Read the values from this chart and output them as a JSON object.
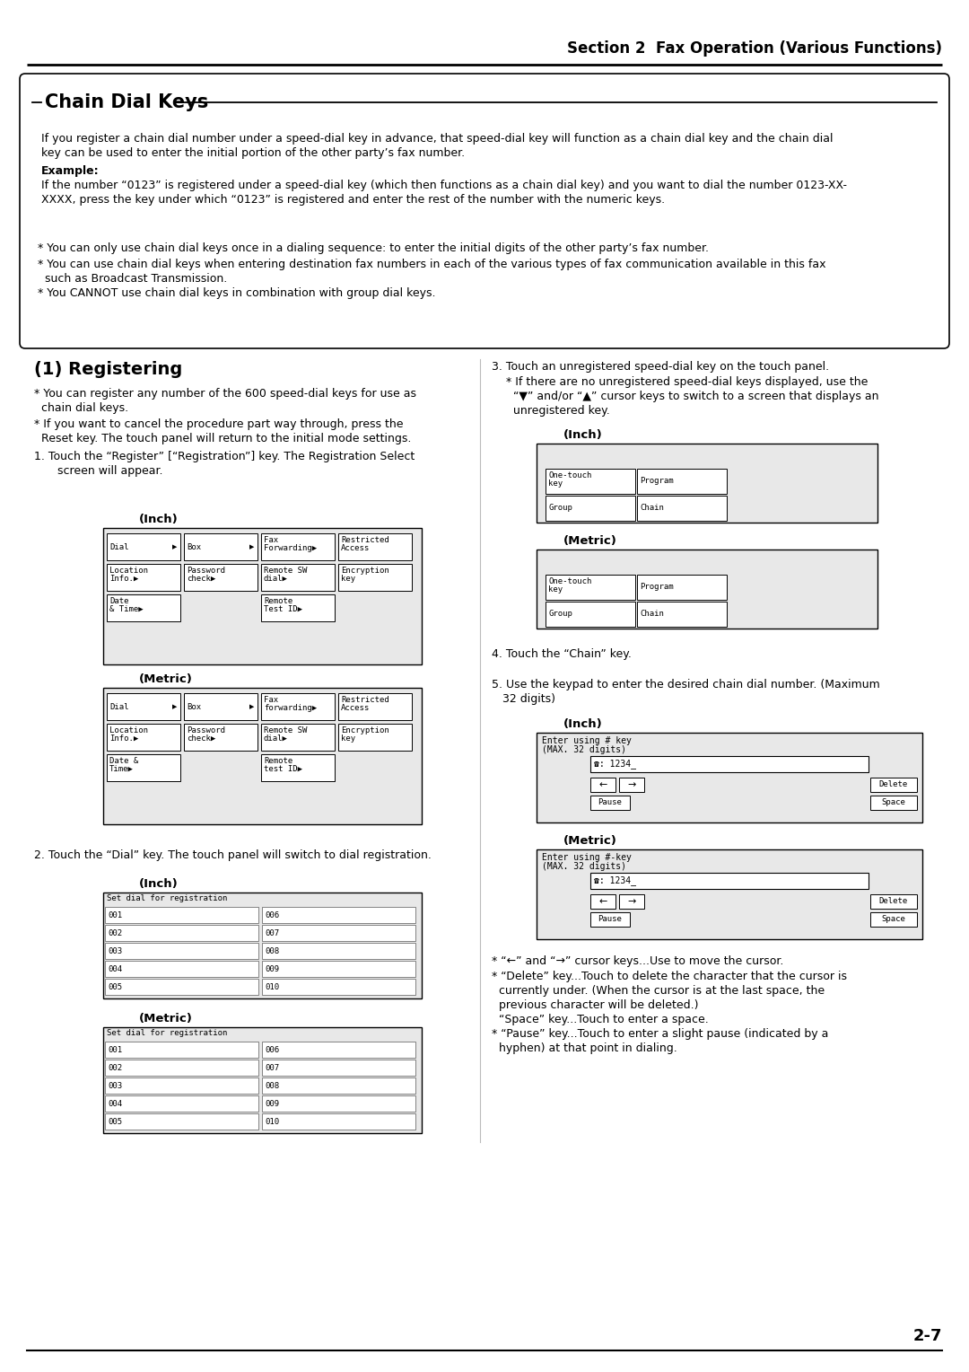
{
  "bg_color": "#ffffff",
  "title_section": "Section 2  Fax Operation (Various Functions)",
  "chapter_title": "Chain Dial Keys",
  "page_number": "2-7",
  "intro_lines": [
    "If you register a chain dial number under a speed-dial key in advance, that speed-dial key will function as a chain dial key and the chain dial",
    "key can be used to enter the initial portion of the other party’s fax number.",
    "Example:",
    "If the number “0123” is registered under a speed-dial key (which then functions as a chain dial key) and you want to dial the number 0123-XX-",
    "XXXX, press the key under which “0123” is registered and enter the rest of the number with the numeric keys."
  ],
  "bullet1": "* You can only use chain dial keys once in a dialing sequence: to enter the initial digits of the other party’s fax number.",
  "bullet2a": "* You can use chain dial keys when entering destination fax numbers in each of the various types of fax communication available in this fax",
  "bullet2b": "  such as Broadcast Transmission.",
  "bullet3": "* You CANNOT use chain dial keys in combination with group dial keys.",
  "reg_title": "(1) Registering",
  "reg_b1a": "* You can register any number of the 600 speed-dial keys for use as",
  "reg_b1b": "  chain dial keys.",
  "reg_b2a": "* If you want to cancel the procedure part way through, press the",
  "reg_b2b": "  Reset key. The touch panel will return to the initial mode settings.",
  "step1a": "1. Touch the “Register” [“Registration”] key. The Registration Select",
  "step1b": "   screen will appear.",
  "step2": "2. Touch the “Dial” key. The touch panel will switch to dial registration.",
  "step3a": "3. Touch an unregistered speed-dial key on the touch panel.",
  "step3b": "  * If there are no unregistered speed-dial keys displayed, use the",
  "step3c": "    “▼” and/or “▲” cursor keys to switch to a screen that displays an",
  "step3d": "    unregistered key.",
  "step4": "4. Touch the “Chain” key.",
  "step5a": "5. Use the keypad to enter the desired chain dial number. (Maximum",
  "step5b": "   32 digits)",
  "sub_b1": "* “←” and “→” cursor keys...Use to move the cursor.",
  "sub_b2a": "* “Delete” key...Touch to delete the character that the cursor is",
  "sub_b2b": "  currently under. (When the cursor is at the last space, the",
  "sub_b2c": "  previous character will be deleted.)",
  "sub_b3": "  “Space” key...Touch to enter a space.",
  "sub_b4a": "* “Pause” key...Touch to enter a slight pause (indicated by a",
  "sub_b4b": "  hyphen) at that point in dialing."
}
